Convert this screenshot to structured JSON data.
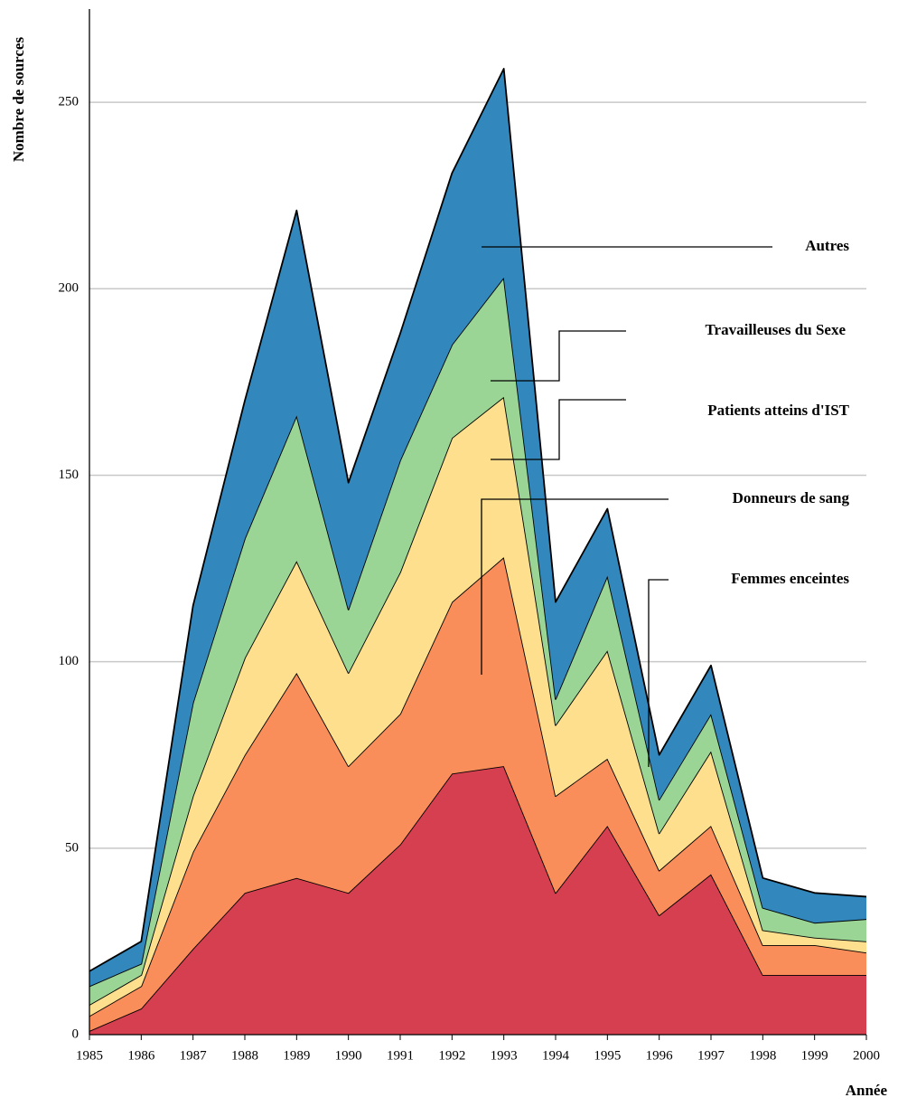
{
  "chart_data": {
    "type": "stacked_area",
    "y_label": "Nombre de sources",
    "x_label": "Année",
    "categories": [
      "1985",
      "1986",
      "1987",
      "1988",
      "1989",
      "1990",
      "1991",
      "1992",
      "1993",
      "1994",
      "1995",
      "1996",
      "1997",
      "1998",
      "1999",
      "2000"
    ],
    "series": [
      {
        "name": "Femmes enceintes",
        "color": "#d63f50",
        "values": [
          1,
          7,
          23,
          38,
          42,
          38,
          51,
          70,
          72,
          38,
          56,
          32,
          43,
          16,
          16,
          16
        ]
      },
      {
        "name": "Donneurs de sang",
        "color": "#f98e5a",
        "values": [
          4,
          6,
          26,
          37,
          55,
          34,
          35,
          46,
          56,
          26,
          18,
          12,
          13,
          8,
          8,
          6
        ]
      },
      {
        "name": "Patients atteins d'IST",
        "color": "#fddf8d",
        "values": [
          3,
          3,
          15,
          26,
          30,
          25,
          38,
          44,
          43,
          19,
          29,
          10,
          20,
          4,
          2,
          3
        ]
      },
      {
        "name": "Travailleuses du Sexe",
        "color": "#9bd595",
        "values": [
          5,
          3,
          25,
          32,
          39,
          17,
          30,
          25,
          32,
          7,
          20,
          9,
          10,
          6,
          4,
          6
        ]
      },
      {
        "name": "Autres",
        "color": "#3288bd",
        "values": [
          4,
          6,
          26,
          37,
          55,
          34,
          34,
          46,
          56,
          26,
          18,
          12,
          13,
          8,
          8,
          6
        ]
      }
    ],
    "ylim": [
      0,
      275
    ],
    "yticks": [
      0,
      50,
      100,
      150,
      200,
      250
    ],
    "grid": true
  }
}
